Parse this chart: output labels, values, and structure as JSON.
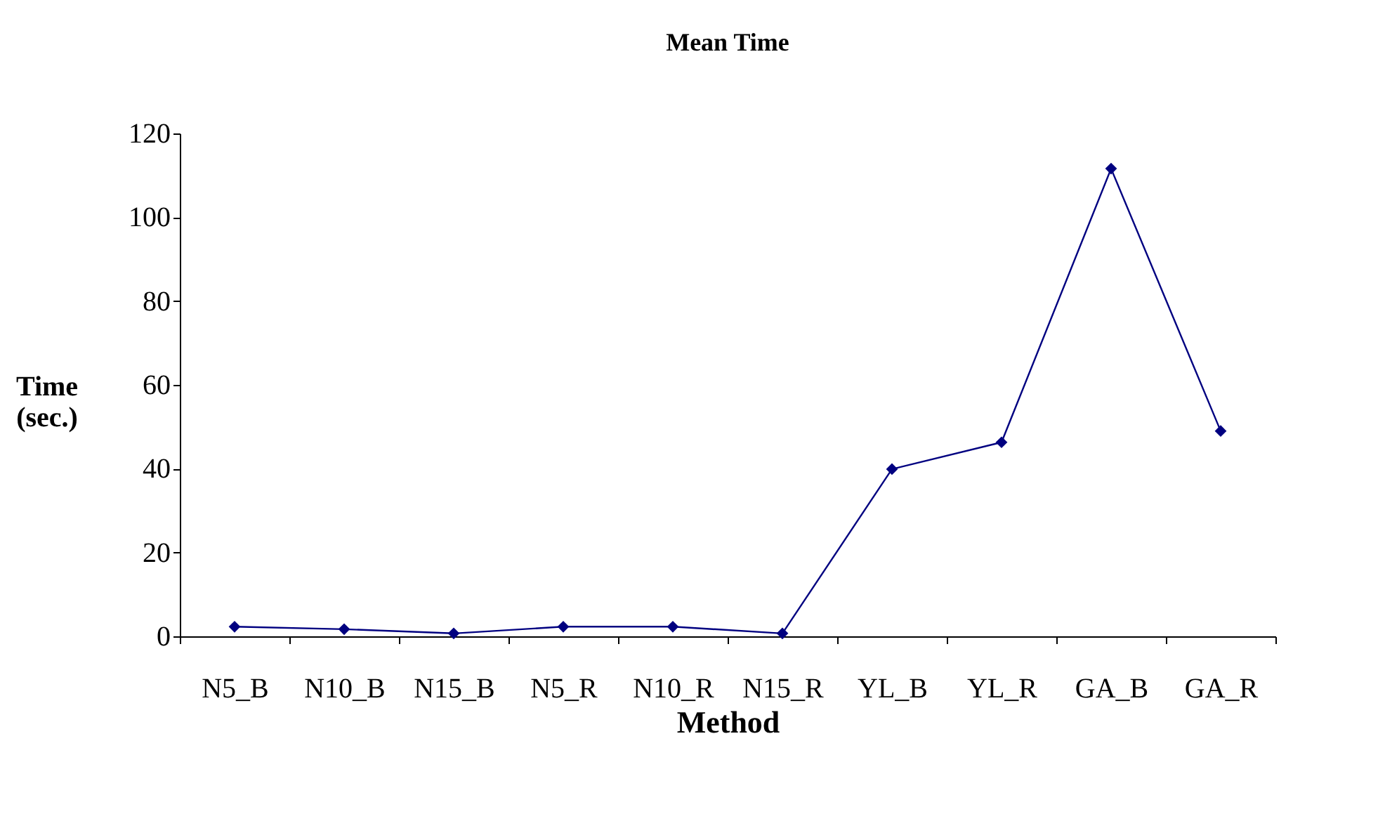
{
  "chart_data": {
    "type": "line",
    "title": "Mean Time",
    "xlabel": "Method",
    "ylabel": "Time (sec.)",
    "categories": [
      "N5_B",
      "N10_B",
      "N15_B",
      "N5_R",
      "N10_R",
      "N15_R",
      "YL_B",
      "YL_R",
      "GA_B",
      "GA_R"
    ],
    "series": [
      {
        "color": "#000080",
        "values": [
          2.3,
          1.7,
          0.7,
          2.3,
          2.3,
          0.7,
          39.9,
          46.3,
          111.6,
          49.0
        ]
      }
    ],
    "ylim": [
      0,
      120
    ],
    "yticks": [
      0,
      20,
      40,
      60,
      80,
      100,
      120
    ],
    "grid": false,
    "marker": "diamond",
    "line_style": "solid"
  }
}
